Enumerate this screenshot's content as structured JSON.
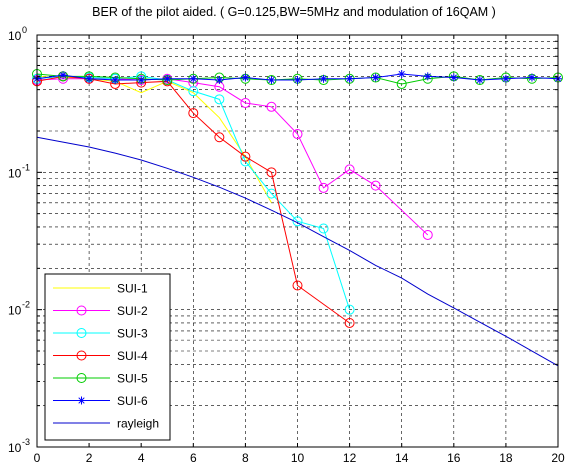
{
  "chart_data": {
    "type": "line",
    "title": "BER of the pilot aided. ( G=0.125,BW=5MHz and modulation of 16QAM )",
    "xlabel": "",
    "ylabel": "",
    "xlim": [
      0,
      20
    ],
    "ylim": [
      0.001,
      1
    ],
    "yscale": "log",
    "grid": true,
    "x_ticks": [
      "0",
      "2",
      "4",
      "6",
      "8",
      "10",
      "12",
      "14",
      "16",
      "18",
      "20"
    ],
    "y_ticks": [
      {
        "base": "10",
        "exp": "0"
      },
      {
        "base": "10",
        "exp": "-1"
      },
      {
        "base": "10",
        "exp": "-2"
      },
      {
        "base": "10",
        "exp": "-3"
      }
    ],
    "legend_position": "bottom-left",
    "series": [
      {
        "name": "SUI-1",
        "color": "#ffff00",
        "marker": "none",
        "points": [
          [
            0,
            0.5
          ],
          [
            1,
            0.49
          ],
          [
            2,
            0.48
          ],
          [
            3,
            0.46
          ],
          [
            4,
            0.38
          ],
          [
            5,
            0.46
          ],
          [
            6,
            0.38
          ],
          [
            7,
            0.25
          ],
          [
            8,
            0.13
          ],
          [
            9,
            0.06
          ]
        ]
      },
      {
        "name": "SUI-2",
        "color": "#ff00ff",
        "marker": "circle",
        "points": [
          [
            0,
            0.47
          ],
          [
            1,
            0.48
          ],
          [
            2,
            0.48
          ],
          [
            3,
            0.48
          ],
          [
            4,
            0.47
          ],
          [
            5,
            0.48
          ],
          [
            6,
            0.45
          ],
          [
            7,
            0.42
          ],
          [
            8,
            0.32
          ],
          [
            9,
            0.3
          ],
          [
            10,
            0.19
          ],
          [
            11,
            0.077
          ],
          [
            12,
            0.105
          ],
          [
            13,
            0.08
          ],
          [
            15,
            0.035
          ]
        ]
      },
      {
        "name": "SUI-3",
        "color": "#00ffff",
        "marker": "circle",
        "points": [
          [
            0,
            0.48
          ],
          [
            1,
            0.5
          ],
          [
            2,
            0.49
          ],
          [
            3,
            0.48
          ],
          [
            4,
            0.5
          ],
          [
            5,
            0.47
          ],
          [
            6,
            0.39
          ],
          [
            7,
            0.34
          ],
          [
            8,
            0.12
          ],
          [
            9,
            0.07
          ],
          [
            10,
            0.044
          ],
          [
            11,
            0.039
          ],
          [
            12,
            0.01
          ]
        ]
      },
      {
        "name": "SUI-4",
        "color": "#ff0000",
        "marker": "circle",
        "points": [
          [
            0,
            0.46
          ],
          [
            1,
            0.5
          ],
          [
            2,
            0.48
          ],
          [
            3,
            0.44
          ],
          [
            4,
            0.45
          ],
          [
            5,
            0.46
          ],
          [
            6,
            0.27
          ],
          [
            7,
            0.18
          ],
          [
            8,
            0.13
          ],
          [
            9,
            0.1
          ],
          [
            10,
            0.015
          ],
          [
            12,
            0.008
          ]
        ]
      },
      {
        "name": "SUI-5",
        "color": "#00cc00",
        "marker": "circle",
        "points": [
          [
            0,
            0.52
          ],
          [
            1,
            0.5
          ],
          [
            2,
            0.5
          ],
          [
            3,
            0.49
          ],
          [
            4,
            0.48
          ],
          [
            5,
            0.47
          ],
          [
            6,
            0.48
          ],
          [
            7,
            0.49
          ],
          [
            8,
            0.48
          ],
          [
            9,
            0.47
          ],
          [
            10,
            0.48
          ],
          [
            11,
            0.47
          ],
          [
            12,
            0.48
          ],
          [
            13,
            0.49
          ],
          [
            14,
            0.44
          ],
          [
            15,
            0.48
          ],
          [
            16,
            0.5
          ],
          [
            17,
            0.47
          ],
          [
            18,
            0.49
          ],
          [
            19,
            0.48
          ],
          [
            20,
            0.49
          ]
        ]
      },
      {
        "name": "SUI-6",
        "color": "#0000ff",
        "marker": "star",
        "points": [
          [
            0,
            0.48
          ],
          [
            1,
            0.51
          ],
          [
            2,
            0.48
          ],
          [
            3,
            0.47
          ],
          [
            4,
            0.47
          ],
          [
            5,
            0.48
          ],
          [
            6,
            0.48
          ],
          [
            7,
            0.47
          ],
          [
            8,
            0.49
          ],
          [
            9,
            0.47
          ],
          [
            10,
            0.47
          ],
          [
            11,
            0.48
          ],
          [
            12,
            0.48
          ],
          [
            13,
            0.49
          ],
          [
            14,
            0.52
          ],
          [
            15,
            0.5
          ],
          [
            16,
            0.49
          ],
          [
            17,
            0.47
          ],
          [
            18,
            0.48
          ],
          [
            19,
            0.49
          ],
          [
            20,
            0.48
          ]
        ]
      },
      {
        "name": "rayleigh",
        "color": "#0000cc",
        "marker": "none",
        "points": [
          [
            0,
            0.18
          ],
          [
            1,
            0.166
          ],
          [
            2,
            0.153
          ],
          [
            3,
            0.138
          ],
          [
            4,
            0.123
          ],
          [
            5,
            0.107
          ],
          [
            6,
            0.092
          ],
          [
            7,
            0.078
          ],
          [
            8,
            0.065
          ],
          [
            9,
            0.053
          ],
          [
            10,
            0.043
          ],
          [
            11,
            0.034
          ],
          [
            12,
            0.027
          ],
          [
            13,
            0.021
          ],
          [
            14,
            0.017
          ],
          [
            15,
            0.013
          ],
          [
            16,
            0.0103
          ],
          [
            17,
            0.0081
          ],
          [
            18,
            0.0064
          ],
          [
            19,
            0.005
          ],
          [
            20,
            0.0039
          ]
        ]
      }
    ]
  }
}
